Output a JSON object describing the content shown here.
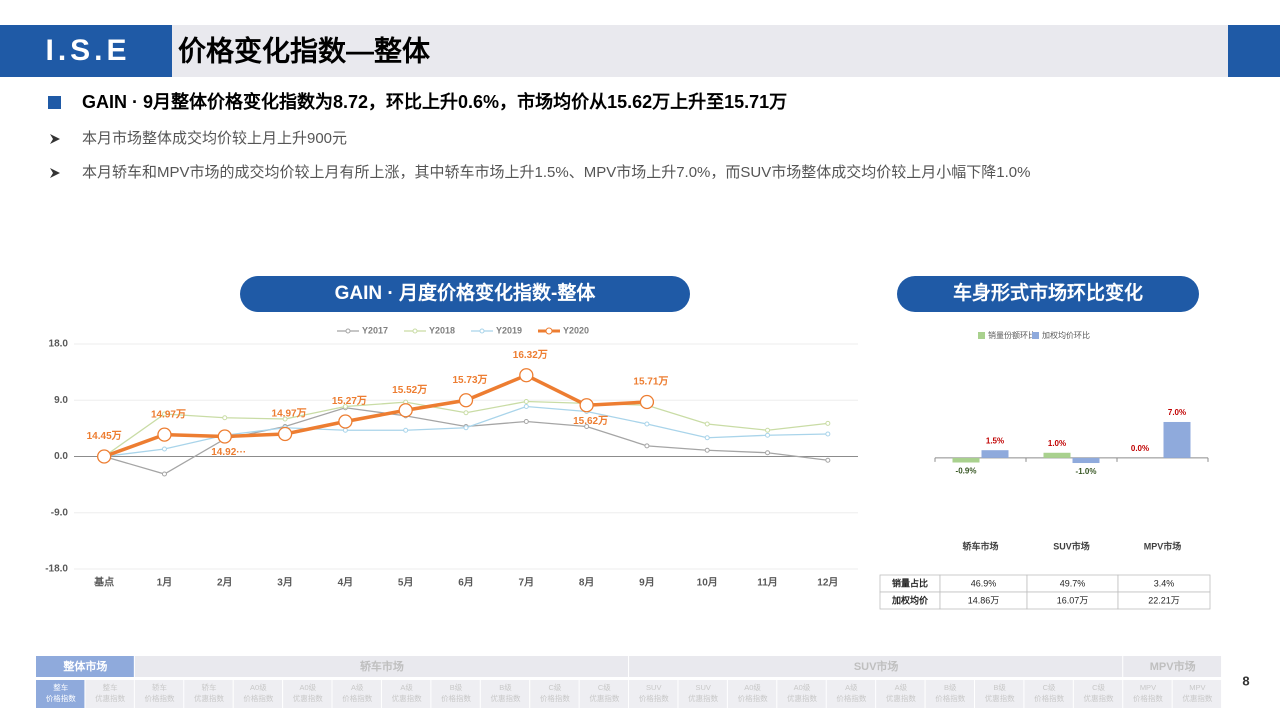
{
  "header": {
    "logo": "I.S.E",
    "title": "价格变化指数—整体"
  },
  "bullets": {
    "main": "GAIN · 9月整体价格变化指数为8.72，环比上升0.6%，市场均价从15.62万上升至15.71万",
    "subs": [
      "本月市场整体成交均价较上月上升900元",
      "本月轿车和MPV市场的成交均价较上月有所上涨，其中轿车市场上升1.5%、MPV市场上升7.0%，而SUV市场整体成交均价较上月小幅下降1.0%"
    ]
  },
  "chart_data": [
    {
      "type": "line",
      "title": "GAIN · 月度价格变化指数-整体",
      "categories": [
        "基点",
        "1月",
        "2月",
        "3月",
        "4月",
        "5月",
        "6月",
        "7月",
        "8月",
        "9月",
        "10月",
        "11月",
        "12月"
      ],
      "series": [
        {
          "name": "Y2017",
          "color": "#a5a5a5",
          "values": [
            0,
            -2.8,
            2.8,
            4.8,
            7.8,
            6.5,
            4.8,
            5.6,
            4.8,
            1.7,
            1.0,
            0.6,
            -0.6
          ]
        },
        {
          "name": "Y2018",
          "color": "#c9dca5",
          "values": [
            0,
            6.8,
            6.2,
            6.0,
            8.0,
            8.7,
            7.0,
            8.8,
            8.5,
            8.2,
            5.2,
            4.2,
            5.3
          ]
        },
        {
          "name": "Y2019",
          "color": "#a9d4ea",
          "values": [
            0,
            1.2,
            3.4,
            4.6,
            4.2,
            4.2,
            4.6,
            8.0,
            7.2,
            5.2,
            3.0,
            3.4,
            3.6
          ]
        },
        {
          "name": "Y2020",
          "color": "#ed7d31",
          "values": [
            0,
            3.5,
            3.2,
            3.6,
            5.6,
            7.4,
            9.0,
            13.0,
            8.2,
            8.72,
            null,
            null,
            null
          ]
        }
      ],
      "point_labels": [
        "14.45万",
        "14.97万",
        "14.92···",
        "14.97万",
        "15.27万",
        "15.52万",
        "15.73万",
        "16.32万",
        "15.62万",
        "15.71万"
      ],
      "ylim": [
        -18,
        18
      ],
      "yticks": [
        {
          "value": 18,
          "label": "18.0"
        },
        {
          "value": 9,
          "label": "9.0"
        },
        {
          "value": 0,
          "label": "0.0"
        },
        {
          "value": -9,
          "label": "-9.0"
        },
        {
          "value": -18,
          "label": "-18.0"
        }
      ],
      "grid": true
    },
    {
      "type": "bar",
      "title": "车身形式市场环比变化",
      "categories": [
        "轿车市场",
        "SUV市场",
        "MPV市场"
      ],
      "series": [
        {
          "name": "销量份额环比",
          "color": "#a9d18e",
          "values": [
            -0.9,
            1.0,
            0.0
          ],
          "value_labels": [
            "-0.9%",
            "1.0%",
            "0.0%"
          ]
        },
        {
          "name": "加权均价环比",
          "color": "#8faadc",
          "values": [
            1.5,
            -1.0,
            7.0
          ],
          "value_labels": [
            "1.5%",
            "-1.0%",
            "7.0%"
          ]
        }
      ],
      "ylim": [
        -16,
        22
      ]
    }
  ],
  "table": {
    "rows": [
      [
        "销量占比",
        "46.9%",
        "49.7%",
        "3.4%"
      ],
      [
        "加权均价",
        "14.86万",
        "16.07万",
        "22.21万"
      ]
    ]
  },
  "nav": {
    "groups": [
      "整体市场",
      "轿车市场",
      "SUV市场",
      "MPV市场"
    ],
    "items": [
      [
        "整车",
        "价格指数"
      ],
      [
        "整车",
        "优惠指数"
      ],
      [
        "轿车",
        "价格指数"
      ],
      [
        "轿车",
        "优惠指数"
      ],
      [
        "A0级",
        "价格指数"
      ],
      [
        "A0级",
        "优惠指数"
      ],
      [
        "A级",
        "价格指数"
      ],
      [
        "A级",
        "优惠指数"
      ],
      [
        "B级",
        "价格指数"
      ],
      [
        "B级",
        "优惠指数"
      ],
      [
        "C级",
        "价格指数"
      ],
      [
        "C级",
        "优惠指数"
      ],
      [
        "SUV",
        "价格指数"
      ],
      [
        "SUV",
        "优惠指数"
      ],
      [
        "A0级",
        "价格指数"
      ],
      [
        "A0级",
        "优惠指数"
      ],
      [
        "A级",
        "价格指数"
      ],
      [
        "A级",
        "优惠指数"
      ],
      [
        "B级",
        "价格指数"
      ],
      [
        "B级",
        "优惠指数"
      ],
      [
        "C级",
        "价格指数"
      ],
      [
        "C级",
        "优惠指数"
      ],
      [
        "MPV",
        "价格指数"
      ],
      [
        "MPV",
        "优惠指数"
      ]
    ]
  },
  "page_number": "8"
}
